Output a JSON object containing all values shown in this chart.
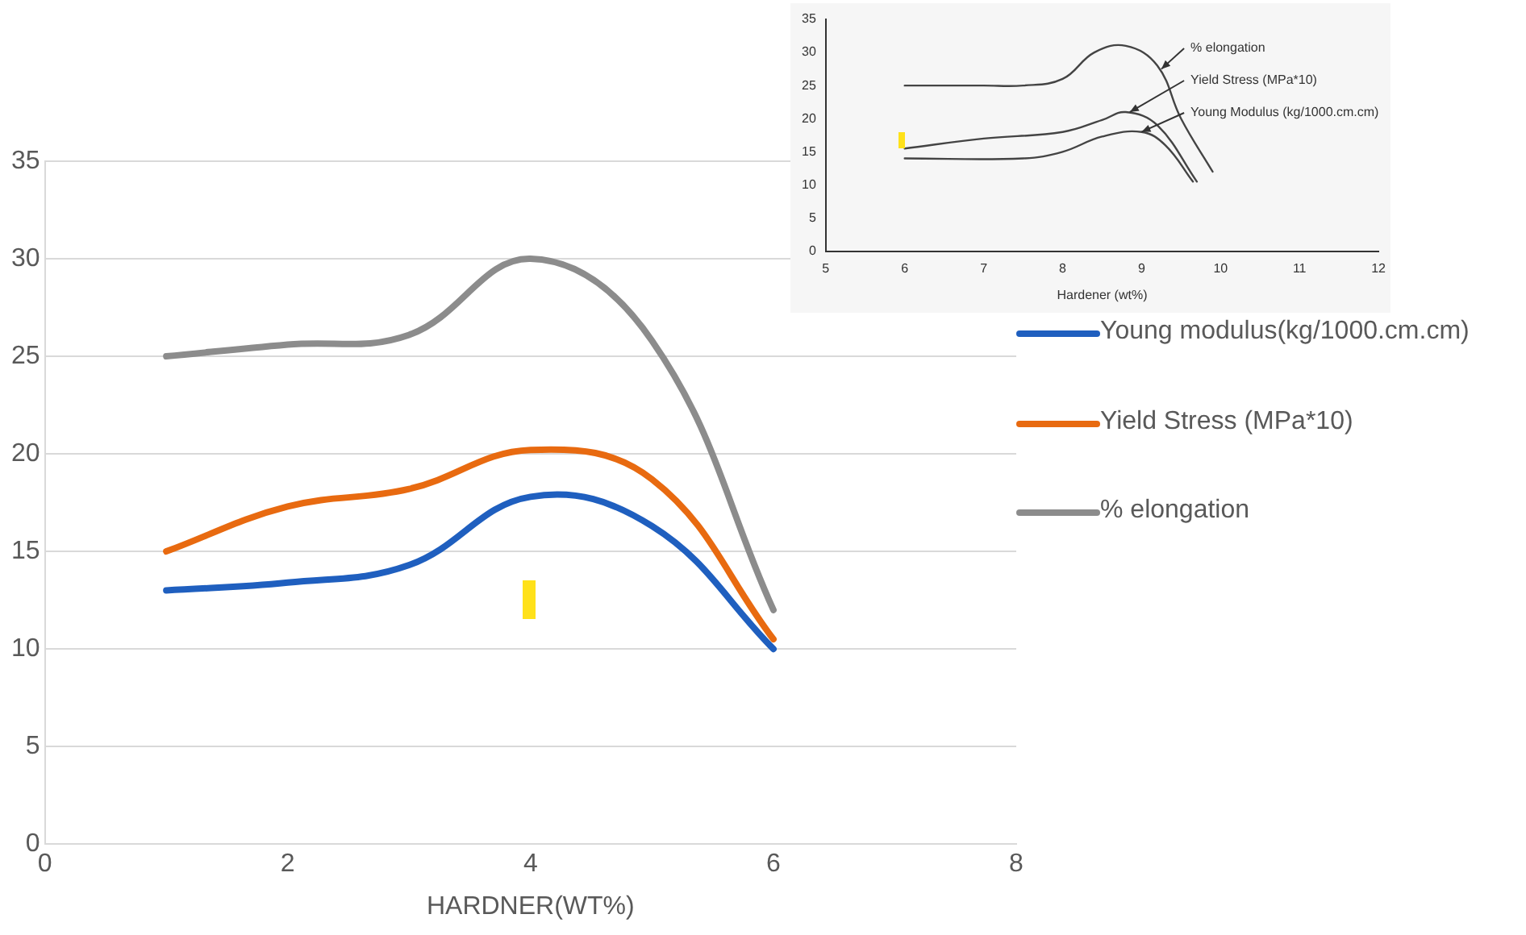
{
  "chart_data": [
    {
      "type": "line",
      "xlabel": "HARDNER(WT%)",
      "x": [
        1,
        2,
        3,
        4,
        5,
        6
      ],
      "xlim": [
        0,
        8
      ],
      "xticks": [
        0,
        2,
        4,
        6,
        8
      ],
      "ylim": [
        0,
        35
      ],
      "yticks": [
        0,
        5,
        10,
        15,
        20,
        25,
        30,
        35
      ],
      "grid": "y",
      "legend": "right",
      "series": [
        {
          "name": "Young modulus(kg/1000.cm.cm)",
          "color": "#1f5fbf",
          "values": [
            13,
            13.4,
            14.3,
            17.8,
            16.3,
            10
          ]
        },
        {
          "name": "Yield Stress (MPa*10)",
          "color": "#e86a10",
          "values": [
            15,
            17.3,
            18.2,
            20.2,
            18.7,
            10.5
          ]
        },
        {
          "name": "% elongation",
          "color": "#8c8c8c",
          "values": [
            25,
            25.6,
            26.1,
            30,
            25.8,
            12
          ]
        }
      ]
    },
    {
      "type": "line",
      "xlabel": "Hardener (wt%)",
      "xlim": [
        5,
        12
      ],
      "xticks": [
        5,
        6,
        7,
        8,
        9,
        10,
        11,
        12
      ],
      "ylim": [
        0,
        35
      ],
      "yticks": [
        0,
        5,
        10,
        15,
        20,
        25,
        30,
        35
      ],
      "grid": false,
      "legend": false,
      "series": [
        {
          "color": "#444444",
          "x": [
            6,
            7,
            7.5,
            8,
            8.4,
            8.8,
            9.2,
            9.5,
            9.9
          ],
          "values": [
            25,
            25,
            25,
            26,
            30,
            31,
            28,
            20,
            12
          ]
        },
        {
          "color": "#444444",
          "x": [
            6,
            7,
            8,
            8.5,
            8.8,
            9.2,
            9.7
          ],
          "values": [
            15.5,
            17,
            18,
            19.8,
            21,
            19,
            10.5
          ]
        },
        {
          "color": "#444444",
          "x": [
            6,
            7.5,
            8,
            8.5,
            9,
            9.3,
            9.65
          ],
          "values": [
            14,
            14,
            15,
            17.3,
            18,
            16,
            10.5
          ]
        }
      ],
      "annotations": [
        {
          "text": "% elongation",
          "x": 9.25,
          "y": 27.5
        },
        {
          "text": "Yield Stress (MPa*10)",
          "x": 8.85,
          "y": 21
        },
        {
          "text": "Young Modulus (kg/1000.cm.cm)",
          "x": 9,
          "y": 18
        }
      ]
    }
  ]
}
